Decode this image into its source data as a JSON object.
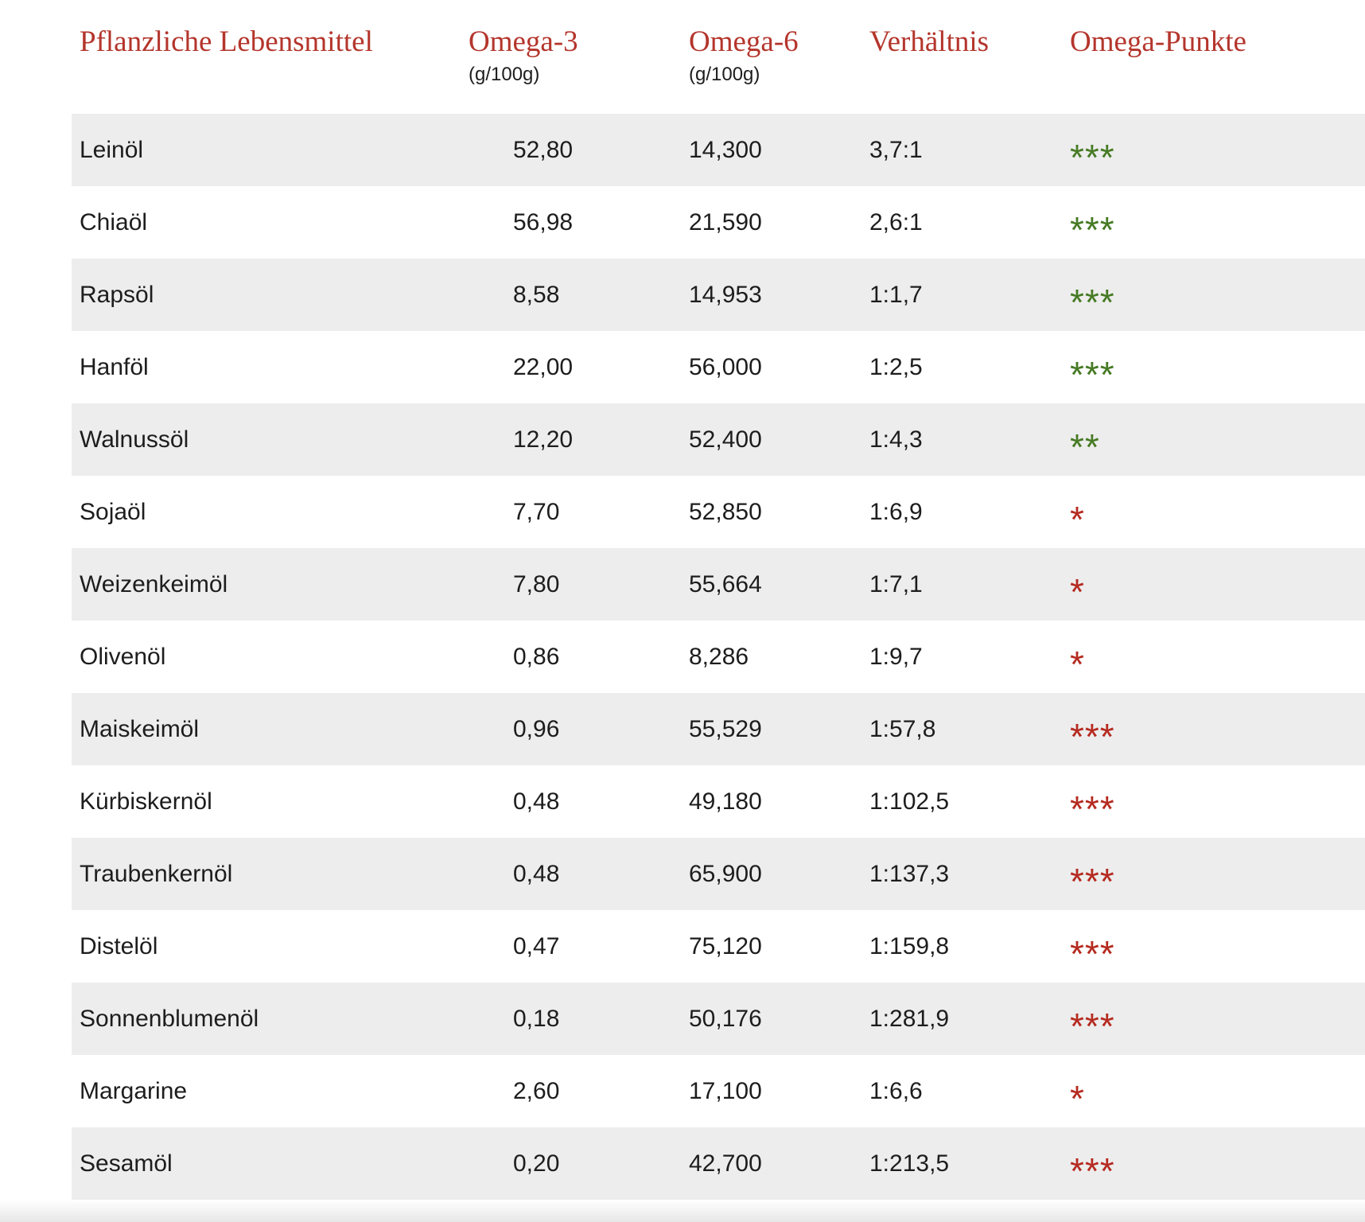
{
  "table": {
    "columns": [
      {
        "label": "Pflanzliche Lebensmittel",
        "sub": ""
      },
      {
        "label": "Omega-3",
        "sub": "(g/100g)"
      },
      {
        "label": "Omega-6",
        "sub": "(g/100g)"
      },
      {
        "label": "Verhältnis",
        "sub": ""
      },
      {
        "label": "Omega-Punkte",
        "sub": ""
      }
    ],
    "rows": [
      {
        "name": "Leinöl",
        "omega3": "52,80",
        "omega6": "14,300",
        "ratio": "3,7:1",
        "stars": "***",
        "rating": "green"
      },
      {
        "name": "Chiaöl",
        "omega3": "56,98",
        "omega6": "21,590",
        "ratio": "2,6:1",
        "stars": "***",
        "rating": "green"
      },
      {
        "name": "Rapsöl",
        "omega3": "8,58",
        "omega6": "14,953",
        "ratio": "1:1,7",
        "stars": "***",
        "rating": "green"
      },
      {
        "name": "Hanföl",
        "omega3": "22,00",
        "omega6": "56,000",
        "ratio": "1:2,5",
        "stars": "***",
        "rating": "green"
      },
      {
        "name": "Walnussöl",
        "omega3": "12,20",
        "omega6": "52,400",
        "ratio": "1:4,3",
        "stars": "**",
        "rating": "green"
      },
      {
        "name": "Sojaöl",
        "omega3": "7,70",
        "omega6": "52,850",
        "ratio": "1:6,9",
        "stars": "*",
        "rating": "red"
      },
      {
        "name": "Weizenkeimöl",
        "omega3": "7,80",
        "omega6": "55,664",
        "ratio": "1:7,1",
        "stars": "*",
        "rating": "red"
      },
      {
        "name": "Olivenöl",
        "omega3": "0,86",
        "omega6": "8,286",
        "ratio": "1:9,7",
        "stars": "*",
        "rating": "red"
      },
      {
        "name": "Maiskeimöl",
        "omega3": "0,96",
        "omega6": "55,529",
        "ratio": "1:57,8",
        "stars": "***",
        "rating": "red"
      },
      {
        "name": "Kürbiskernöl",
        "omega3": "0,48",
        "omega6": "49,180",
        "ratio": "1:102,5",
        "stars": "***",
        "rating": "red"
      },
      {
        "name": "Traubenkernöl",
        "omega3": "0,48",
        "omega6": "65,900",
        "ratio": "1:137,3",
        "stars": "***",
        "rating": "red"
      },
      {
        "name": "Distelöl",
        "omega3": "0,47",
        "omega6": "75,120",
        "ratio": "1:159,8",
        "stars": "***",
        "rating": "red"
      },
      {
        "name": "Sonnenblumenöl",
        "omega3": "0,18",
        "omega6": "50,176",
        "ratio": "1:281,9",
        "stars": "***",
        "rating": "red"
      },
      {
        "name": "Margarine",
        "omega3": "2,60",
        "omega6": "17,100",
        "ratio": "1:6,6",
        "stars": "*",
        "rating": "red"
      },
      {
        "name": "Sesamöl",
        "omega3": "0,20",
        "omega6": "42,700",
        "ratio": "1:213,5",
        "stars": "***",
        "rating": "red"
      }
    ]
  },
  "colors": {
    "header_red": "#b4352c",
    "star_green": "#467a24",
    "star_red": "#b52a20",
    "row_alt_gray": "#ededed",
    "text": "#1d1d1d"
  }
}
